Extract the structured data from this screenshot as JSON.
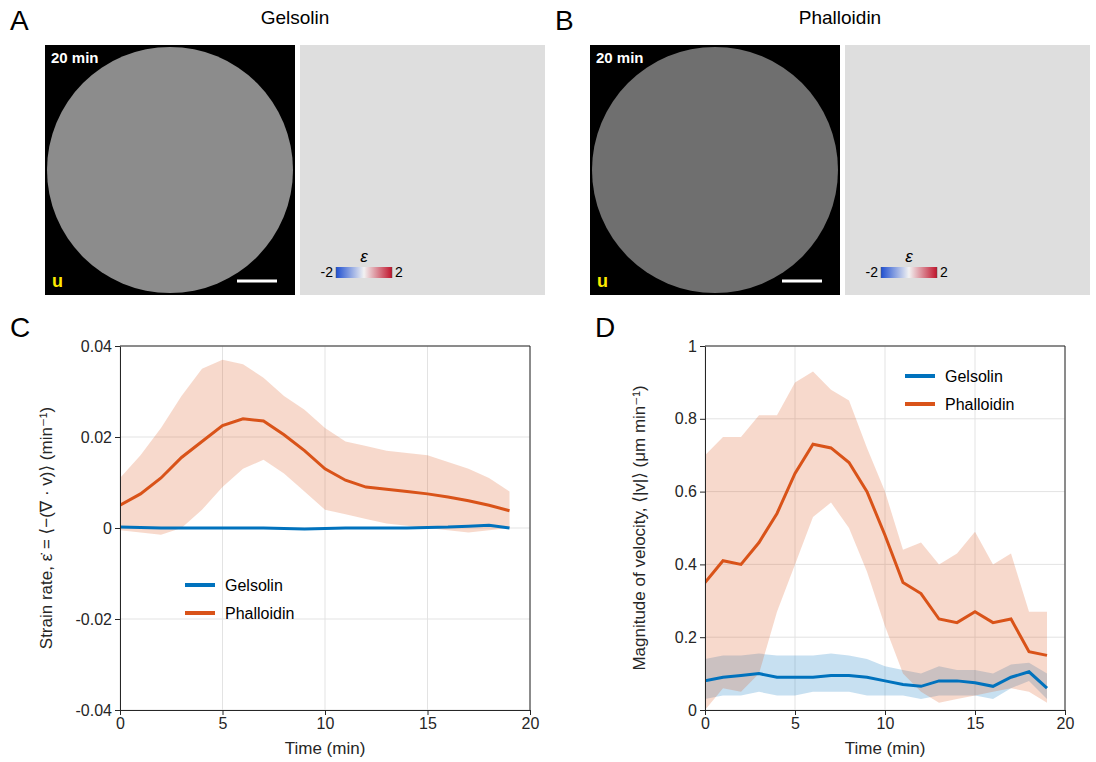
{
  "images": [
    {
      "panel": "A",
      "title": "Gelsolin",
      "time": "20 min",
      "vector_label": "u",
      "colorbar": {
        "label": "ε",
        "range": [
          -2,
          2
        ],
        "ticks": [
          -2,
          2
        ]
      }
    },
    {
      "panel": "B",
      "title": "Phalloidin",
      "time": "20 min",
      "vector_label": "u",
      "colorbar": {
        "label": "ε",
        "range": [
          -2,
          2
        ],
        "ticks": [
          -2,
          2
        ]
      }
    }
  ],
  "chart_data": [
    {
      "type": "line",
      "panel": "C",
      "x_label": "Time (min)",
      "y_label": "Strain rate, ε̇ = ⟨−(∇ · v)⟩ (min⁻¹)",
      "x": [
        0,
        1,
        2,
        3,
        4,
        5,
        6,
        7,
        8,
        9,
        10,
        11,
        12,
        13,
        14,
        15,
        16,
        17,
        18,
        19
      ],
      "xlim": [
        0,
        20
      ],
      "xticks": [
        0,
        5,
        10,
        15,
        20
      ],
      "ylim": [
        -0.04,
        0.04
      ],
      "yticks": [
        -0.04,
        -0.02,
        0,
        0.02,
        0.04
      ],
      "grid": true,
      "legend": "lower left",
      "series": [
        {
          "name": "Gelsolin",
          "color": "#0072bd",
          "values": [
            0.0002,
            0.0001,
            0,
            0,
            0,
            0,
            0,
            0,
            -0.0001,
            -0.0002,
            -0.0001,
            0,
            0,
            0,
            0,
            0.0001,
            0.0002,
            0.0004,
            0.0006,
            0
          ]
        },
        {
          "name": "Phalloidin",
          "color": "#d95319",
          "values": [
            0.005,
            0.0075,
            0.011,
            0.0155,
            0.019,
            0.0225,
            0.024,
            0.0235,
            0.0205,
            0.017,
            0.013,
            0.0105,
            0.009,
            0.0085,
            0.008,
            0.0075,
            0.0068,
            0.006,
            0.005,
            0.0038
          ],
          "lower": [
            -0.0005,
            -0.001,
            -0.0015,
            0,
            0.004,
            0.009,
            0.013,
            0.015,
            0.012,
            0.008,
            0.004,
            0.003,
            0.002,
            0.001,
            0.0005,
            0,
            -0.0005,
            -0.001,
            -0.0005,
            0
          ],
          "upper": [
            0.011,
            0.016,
            0.022,
            0.029,
            0.035,
            0.037,
            0.036,
            0.033,
            0.029,
            0.026,
            0.022,
            0.019,
            0.018,
            0.017,
            0.0165,
            0.016,
            0.0145,
            0.013,
            0.011,
            0.008
          ]
        }
      ]
    },
    {
      "type": "line",
      "panel": "D",
      "x_label": "Time (min)",
      "y_label": "Magnitude of velocity, ⟨|v|⟩ (μm min⁻¹)",
      "x": [
        0,
        1,
        2,
        3,
        4,
        5,
        6,
        7,
        8,
        9,
        10,
        11,
        12,
        13,
        14,
        15,
        16,
        17,
        18,
        19
      ],
      "xlim": [
        0,
        20
      ],
      "xticks": [
        0,
        5,
        10,
        15,
        20
      ],
      "ylim": [
        0,
        1
      ],
      "yticks": [
        0,
        0.2,
        0.4,
        0.6,
        0.8,
        1
      ],
      "grid": true,
      "legend": "upper right",
      "series": [
        {
          "name": "Gelsolin",
          "color": "#0072bd",
          "values": [
            0.08,
            0.09,
            0.095,
            0.1,
            0.09,
            0.09,
            0.09,
            0.095,
            0.095,
            0.09,
            0.08,
            0.07,
            0.065,
            0.08,
            0.08,
            0.075,
            0.065,
            0.09,
            0.105,
            0.06
          ],
          "lower": [
            0.03,
            0.04,
            0.04,
            0.05,
            0.04,
            0.04,
            0.05,
            0.05,
            0.05,
            0.04,
            0.04,
            0.04,
            0.03,
            0.04,
            0.04,
            0.04,
            0.03,
            0.06,
            0.08,
            0.03
          ],
          "upper": [
            0.14,
            0.15,
            0.15,
            0.155,
            0.15,
            0.15,
            0.15,
            0.155,
            0.15,
            0.14,
            0.12,
            0.11,
            0.1,
            0.12,
            0.11,
            0.11,
            0.1,
            0.125,
            0.13,
            0.1
          ]
        },
        {
          "name": "Phalloidin",
          "color": "#d95319",
          "values": [
            0.35,
            0.41,
            0.4,
            0.46,
            0.54,
            0.65,
            0.73,
            0.72,
            0.68,
            0.6,
            0.48,
            0.35,
            0.32,
            0.25,
            0.24,
            0.27,
            0.24,
            0.25,
            0.16,
            0.15
          ],
          "lower": [
            0,
            0.06,
            0.05,
            0.1,
            0.27,
            0.4,
            0.53,
            0.57,
            0.5,
            0.38,
            0.23,
            0.1,
            0.05,
            0.02,
            0.03,
            0.04,
            0.05,
            0.06,
            0.05,
            0.02
          ],
          "upper": [
            0.7,
            0.75,
            0.75,
            0.81,
            0.81,
            0.9,
            0.93,
            0.88,
            0.85,
            0.72,
            0.6,
            0.44,
            0.46,
            0.4,
            0.43,
            0.49,
            0.4,
            0.43,
            0.27,
            0.27
          ]
        }
      ]
    }
  ]
}
